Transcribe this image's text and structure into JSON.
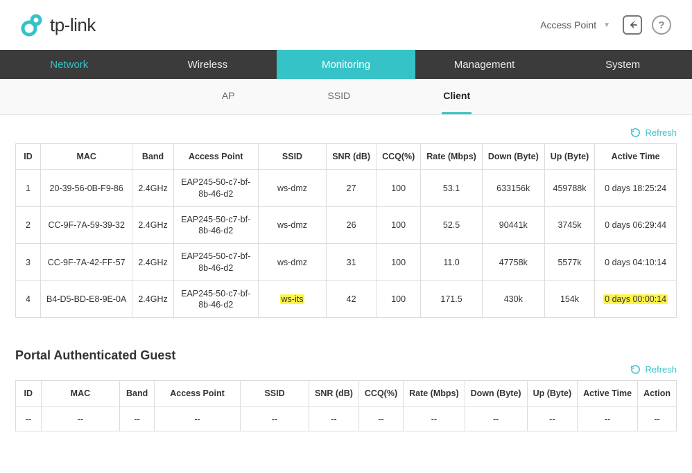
{
  "brand": {
    "name": "tp-link"
  },
  "header": {
    "mode_label": "Access Point",
    "help_label": "?"
  },
  "mainnav": {
    "items": [
      {
        "label": "Network",
        "state": "highlight"
      },
      {
        "label": "Wireless",
        "state": ""
      },
      {
        "label": "Monitoring",
        "state": "active"
      },
      {
        "label": "Management",
        "state": ""
      },
      {
        "label": "System",
        "state": ""
      }
    ]
  },
  "subnav": {
    "items": [
      {
        "label": "AP",
        "active": false
      },
      {
        "label": "SSID",
        "active": false
      },
      {
        "label": "Client",
        "active": true
      }
    ]
  },
  "refresh_label": "Refresh",
  "clients": {
    "columns": {
      "id": "ID",
      "mac": "MAC",
      "band": "Band",
      "ap": "Access Point",
      "ssid": "SSID",
      "snr": "SNR (dB)",
      "ccq": "CCQ(%)",
      "rate": "Rate (Mbps)",
      "down": "Down (Byte)",
      "up": "Up (Byte)",
      "time": "Active Time"
    },
    "rows": [
      {
        "id": "1",
        "mac": "20-39-56-0B-F9-86",
        "band": "2.4GHz",
        "ap": "EAP245-50-c7-bf-8b-46-d2",
        "ssid": "ws-dmz",
        "snr": "27",
        "ccq": "100",
        "rate": "53.1",
        "down": "633156k",
        "up": "459788k",
        "time": "0 days 18:25:24",
        "highlight_ssid": false,
        "highlight_time": false
      },
      {
        "id": "2",
        "mac": "CC-9F-7A-59-39-32",
        "band": "2.4GHz",
        "ap": "EAP245-50-c7-bf-8b-46-d2",
        "ssid": "ws-dmz",
        "snr": "26",
        "ccq": "100",
        "rate": "52.5",
        "down": "90441k",
        "up": "3745k",
        "time": "0 days 06:29:44",
        "highlight_ssid": false,
        "highlight_time": false
      },
      {
        "id": "3",
        "mac": "CC-9F-7A-42-FF-57",
        "band": "2.4GHz",
        "ap": "EAP245-50-c7-bf-8b-46-d2",
        "ssid": "ws-dmz",
        "snr": "31",
        "ccq": "100",
        "rate": "11.0",
        "down": "47758k",
        "up": "5577k",
        "time": "0 days 04:10:14",
        "highlight_ssid": false,
        "highlight_time": false
      },
      {
        "id": "4",
        "mac": "B4-D5-BD-E8-9E-0A",
        "band": "2.4GHz",
        "ap": "EAP245-50-c7-bf-8b-46-d2",
        "ssid": "ws-its",
        "snr": "42",
        "ccq": "100",
        "rate": "171.5",
        "down": "430k",
        "up": "154k",
        "time": "0 days 00:00:14",
        "highlight_ssid": true,
        "highlight_time": true
      }
    ]
  },
  "portal": {
    "title": "Portal Authenticated Guest",
    "columns": {
      "id": "ID",
      "mac": "MAC",
      "band": "Band",
      "ap": "Access Point",
      "ssid": "SSID",
      "snr": "SNR (dB)",
      "ccq": "CCQ(%)",
      "rate": "Rate (Mbps)",
      "down": "Down (Byte)",
      "up": "Up (Byte)",
      "time": "Active Time",
      "action": "Action"
    },
    "empty": "--"
  },
  "colors": {
    "accent": "#36c3c8",
    "nav_bg": "#3b3b3b",
    "border": "#dcdcdc",
    "highlight": "#fff24a"
  }
}
